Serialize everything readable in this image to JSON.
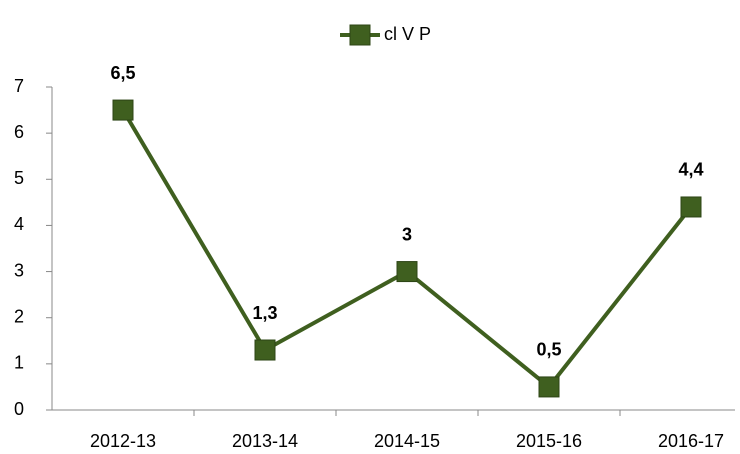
{
  "chart_data": {
    "type": "line",
    "categories": [
      "2012-13",
      "2013-14",
      "2014-15",
      "2015-16",
      "2016-17"
    ],
    "series": [
      {
        "name": "cl V P",
        "color": "#3f5f1f",
        "values": [
          6.5,
          1.3,
          3,
          0.5,
          4.4
        ],
        "value_labels": [
          "6,5",
          "1,3",
          "3",
          "0,5",
          "4,4"
        ]
      }
    ],
    "ylim": [
      0,
      7
    ],
    "yticks": [
      0,
      1,
      2,
      3,
      4,
      5,
      6,
      7
    ],
    "grid": false,
    "legend": "top"
  }
}
